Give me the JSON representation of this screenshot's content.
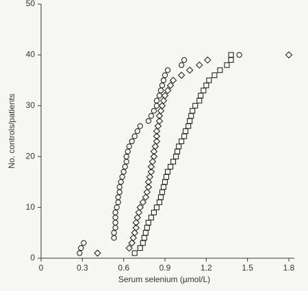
{
  "chart_data": {
    "type": "scatter",
    "xlabel": "Serum selenium (µmol/L)",
    "ylabel": "No. controls/patients",
    "xlim": [
      0,
      1.8
    ],
    "xticks": [
      0,
      0.3,
      0.6,
      0.9,
      1.2,
      1.5,
      1.8
    ],
    "ylim": [
      0,
      50
    ],
    "yticks": [
      0,
      10,
      20,
      30,
      40,
      50
    ],
    "color": "#222222",
    "series": [
      {
        "marker": "circle",
        "x": [
          0.28,
          0.29,
          0.31,
          0.53,
          0.53,
          0.54,
          0.54,
          0.54,
          0.54,
          0.55,
          0.56,
          0.56,
          0.57,
          0.57,
          0.58,
          0.59,
          0.6,
          0.61,
          0.62,
          0.62,
          0.63,
          0.64,
          0.66,
          0.68,
          0.7,
          0.72,
          0.78,
          0.8,
          0.82,
          0.84,
          0.84,
          0.86,
          0.87,
          0.88,
          0.89,
          0.9,
          0.92,
          1.02,
          1.04,
          1.44
        ],
        "values": [
          1,
          2,
          3,
          4,
          5,
          6,
          7,
          8,
          9,
          10,
          11,
          12,
          13,
          14,
          15,
          16,
          17,
          18,
          19,
          20,
          21,
          22,
          23,
          24,
          25,
          26,
          27,
          28,
          29,
          30,
          31,
          32,
          33,
          34,
          35,
          36,
          37,
          38,
          39,
          40
        ]
      },
      {
        "marker": "diamond",
        "x": [
          0.41,
          0.64,
          0.66,
          0.67,
          0.68,
          0.69,
          0.69,
          0.7,
          0.71,
          0.72,
          0.74,
          0.76,
          0.77,
          0.78,
          0.78,
          0.79,
          0.8,
          0.8,
          0.81,
          0.82,
          0.82,
          0.83,
          0.84,
          0.84,
          0.84,
          0.85,
          0.86,
          0.86,
          0.87,
          0.88,
          0.89,
          0.9,
          0.92,
          0.94,
          0.96,
          1.02,
          1.08,
          1.15,
          1.21,
          1.8
        ],
        "values": [
          1,
          2,
          3,
          4,
          5,
          6,
          7,
          8,
          9,
          10,
          11,
          12,
          13,
          14,
          15,
          16,
          17,
          18,
          19,
          20,
          21,
          22,
          23,
          24,
          25,
          26,
          27,
          28,
          29,
          30,
          31,
          32,
          33,
          34,
          35,
          36,
          37,
          38,
          39,
          40
        ]
      },
      {
        "marker": "square",
        "x": [
          0.68,
          0.72,
          0.74,
          0.75,
          0.76,
          0.77,
          0.78,
          0.8,
          0.82,
          0.84,
          0.86,
          0.87,
          0.88,
          0.89,
          0.9,
          0.91,
          0.92,
          0.94,
          0.96,
          0.98,
          0.99,
          1.0,
          1.02,
          1.04,
          1.05,
          1.07,
          1.08,
          1.09,
          1.1,
          1.12,
          1.15,
          1.16,
          1.18,
          1.2,
          1.22,
          1.26,
          1.3,
          1.35,
          1.38,
          1.38
        ],
        "values": [
          1,
          2,
          3,
          4,
          5,
          6,
          7,
          8,
          9,
          10,
          11,
          12,
          13,
          14,
          15,
          16,
          17,
          18,
          19,
          20,
          21,
          22,
          23,
          24,
          25,
          26,
          27,
          28,
          29,
          30,
          31,
          32,
          33,
          34,
          35,
          36,
          37,
          38,
          39,
          40
        ]
      }
    ]
  }
}
